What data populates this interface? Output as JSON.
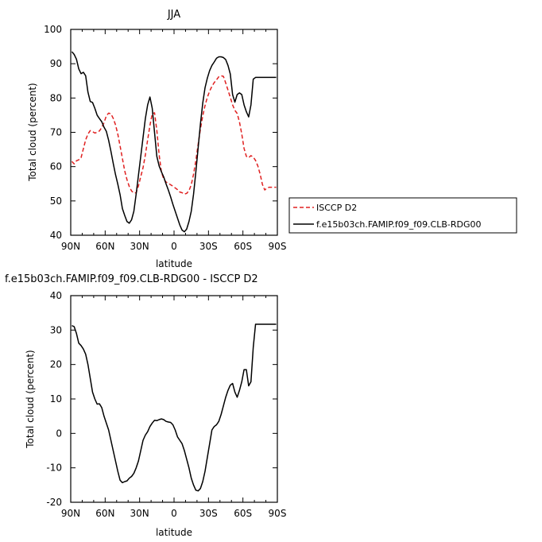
{
  "chart_data": [
    {
      "type": "line",
      "title": "JJA",
      "xlabel": "latitude",
      "ylabel": "Total cloud (percent)",
      "xlim": [
        90,
        -90
      ],
      "ylim": [
        40,
        100
      ],
      "xticks": [
        {
          "v": 90,
          "label": "90N"
        },
        {
          "v": 60,
          "label": "60N"
        },
        {
          "v": 30,
          "label": "30N"
        },
        {
          "v": 0,
          "label": "0"
        },
        {
          "v": -30,
          "label": "30S"
        },
        {
          "v": -60,
          "label": "60S"
        },
        {
          "v": -90,
          "label": "90S"
        }
      ],
      "yticks": [
        40,
        50,
        60,
        70,
        80,
        90,
        100
      ],
      "legend_position": "right",
      "series": [
        {
          "name": "ISCCP D2",
          "color": "#e02020",
          "dash": "dashed",
          "x": [
            89,
            87,
            85,
            83,
            81,
            79,
            77,
            75,
            73,
            71,
            69,
            67,
            65,
            63,
            61,
            59,
            57,
            55,
            53,
            51,
            49,
            47,
            45,
            43,
            41,
            39,
            37,
            35,
            33,
            31,
            29,
            27,
            25,
            23,
            21,
            19,
            17,
            15,
            13,
            11,
            9,
            7,
            5,
            3,
            1,
            -1,
            -3,
            -5,
            -7,
            -9,
            -11,
            -13,
            -15,
            -17,
            -19,
            -21,
            -23,
            -25,
            -27,
            -29,
            -31,
            -33,
            -35,
            -37,
            -39,
            -41,
            -43,
            -45,
            -47,
            -49,
            -51,
            -53,
            -55,
            -57,
            -59,
            -61,
            -63,
            -65,
            -67,
            -69,
            -71,
            -73,
            -75,
            -77,
            -79,
            -81,
            -83,
            -85,
            -87,
            -89
          ],
          "values": [
            61.5,
            60.8,
            61.7,
            62.0,
            62.6,
            65.2,
            67.8,
            69.5,
            70.5,
            70.2,
            69.8,
            70.0,
            70.4,
            71.4,
            72.8,
            74.8,
            75.6,
            75.4,
            74.1,
            72.2,
            69.5,
            66.0,
            62.4,
            58.8,
            56.2,
            54.2,
            52.9,
            52.3,
            52.4,
            54.4,
            57.1,
            59.7,
            63.4,
            67.8,
            72.0,
            75.4,
            75.7,
            70.6,
            63.5,
            58.4,
            56.4,
            55.5,
            55.2,
            54.7,
            54.3,
            53.8,
            53.3,
            52.6,
            52.4,
            52.0,
            52.2,
            53.0,
            54.7,
            57.8,
            61.8,
            66.5,
            71.0,
            74.8,
            77.8,
            80.2,
            82.0,
            83.4,
            84.5,
            85.3,
            86.2,
            86.5,
            86.3,
            84.4,
            82.3,
            80.2,
            78.0,
            76.4,
            75.5,
            73.0,
            69.5,
            65.3,
            63.0,
            62.6,
            63.2,
            62.8,
            61.8,
            60.2,
            57.8,
            54.8,
            53.2,
            53.8,
            54.0,
            54.0,
            54.0,
            54.0
          ]
        },
        {
          "name": "f.e15b03ch.FAMIP.f09_f09.CLB-RDG00",
          "color": "#000000",
          "dash": "solid",
          "x": [
            89,
            87,
            85,
            83,
            81,
            79,
            77,
            75,
            73,
            71,
            69,
            67,
            65,
            63,
            61,
            59,
            57,
            55,
            53,
            51,
            49,
            47,
            45,
            43,
            41,
            39,
            37,
            35,
            33,
            31,
            29,
            27,
            25,
            23,
            21,
            19,
            17,
            15,
            13,
            11,
            9,
            7,
            5,
            3,
            1,
            -1,
            -3,
            -5,
            -7,
            -9,
            -11,
            -13,
            -15,
            -17,
            -19,
            -21,
            -23,
            -25,
            -27,
            -29,
            -31,
            -33,
            -35,
            -37,
            -39,
            -41,
            -43,
            -45,
            -47,
            -49,
            -51,
            -53,
            -55,
            -57,
            -59,
            -61,
            -63,
            -65,
            -67,
            -69,
            -71,
            -73,
            -75,
            -77,
            -79,
            -81,
            -83,
            -85,
            -87,
            -89
          ],
          "values": [
            93.5,
            92.7,
            91.3,
            88.5,
            87.1,
            87.5,
            86.5,
            81.7,
            79.0,
            78.7,
            77.0,
            75.0,
            74.0,
            73.1,
            71.5,
            70.3,
            67.7,
            64.5,
            61.0,
            57.7,
            54.9,
            51.8,
            47.8,
            45.8,
            44.0,
            43.5,
            44.5,
            47.0,
            52.0,
            57.5,
            63.0,
            68.5,
            74.0,
            78.0,
            80.3,
            77.0,
            70.0,
            63.0,
            60.2,
            58.5,
            57.0,
            55.0,
            53.2,
            51.2,
            49.0,
            47.0,
            45.0,
            43.0,
            41.5,
            41.0,
            41.8,
            44.0,
            47.0,
            52.0,
            58.5,
            65.5,
            72.5,
            78.5,
            83.0,
            85.8,
            88.0,
            89.5,
            90.5,
            91.6,
            92.0,
            92.0,
            91.8,
            91.2,
            89.5,
            87.0,
            81.0,
            78.8,
            81.0,
            81.5,
            81.0,
            78.0,
            76.0,
            74.5,
            78.0,
            85.5,
            86.0,
            86.0,
            86.0,
            86.0,
            86.0,
            86.0,
            86.0,
            86.0,
            86.0,
            86.0
          ]
        }
      ]
    },
    {
      "type": "line",
      "title": "f.e15b03ch.FAMIP.f09_f09.CLB-RDG00 - ISCCP D2",
      "xlabel": "latitude",
      "ylabel": "Total cloud (percent)",
      "xlim": [
        90,
        -90
      ],
      "ylim": [
        -20,
        40
      ],
      "xticks": [
        {
          "v": 90,
          "label": "90N"
        },
        {
          "v": 60,
          "label": "60N"
        },
        {
          "v": 30,
          "label": "30N"
        },
        {
          "v": 0,
          "label": "0"
        },
        {
          "v": -30,
          "label": "30S"
        },
        {
          "v": -60,
          "label": "60S"
        },
        {
          "v": -90,
          "label": "90S"
        }
      ],
      "yticks": [
        -20,
        -10,
        0,
        10,
        20,
        30,
        40
      ],
      "series": [
        {
          "color": "#000000",
          "dash": "solid",
          "x": [
            89,
            87,
            85,
            83,
            81,
            79,
            77,
            75,
            73,
            71,
            69,
            67,
            65,
            63,
            61,
            59,
            57,
            55,
            53,
            51,
            49,
            47,
            45,
            43,
            41,
            39,
            37,
            35,
            33,
            31,
            29,
            27,
            25,
            23,
            21,
            19,
            17,
            15,
            13,
            11,
            9,
            7,
            5,
            3,
            1,
            -1,
            -3,
            -5,
            -7,
            -9,
            -11,
            -13,
            -15,
            -17,
            -19,
            -21,
            -23,
            -25,
            -27,
            -29,
            -31,
            -33,
            -35,
            -37,
            -39,
            -41,
            -43,
            -45,
            -47,
            -49,
            -51,
            -53,
            -55,
            -57,
            -59,
            -61,
            -63,
            -65,
            -67,
            -69,
            -71,
            -73,
            -75,
            -77,
            -79,
            -81,
            -83,
            -85,
            -87,
            -89
          ],
          "values": [
            31.3,
            31.0,
            29.0,
            26.2,
            25.5,
            24.5,
            23.0,
            20.0,
            16.0,
            12.0,
            10.0,
            8.5,
            8.6,
            7.5,
            5.0,
            3.0,
            1.0,
            -2.0,
            -5.0,
            -8.0,
            -11.0,
            -13.6,
            -14.3,
            -14.0,
            -13.8,
            -13.0,
            -12.5,
            -11.6,
            -10.0,
            -8.0,
            -5.0,
            -2.0,
            -0.5,
            0.5,
            2.0,
            3.0,
            3.8,
            3.7,
            4.0,
            4.2,
            4.0,
            3.5,
            3.3,
            3.2,
            2.5,
            1.0,
            -1.0,
            -2.0,
            -3.0,
            -5.0,
            -7.5,
            -10.0,
            -13.0,
            -15.0,
            -16.5,
            -16.7,
            -16.0,
            -14.0,
            -11.0,
            -7.0,
            -3.0,
            1.0,
            2.0,
            2.5,
            3.5,
            5.5,
            8.0,
            10.5,
            12.5,
            14.0,
            14.5,
            12.0,
            10.5,
            12.5,
            15.0,
            18.5,
            18.5,
            13.8,
            15.0,
            25.0,
            31.7,
            31.7,
            31.7,
            31.7,
            31.7,
            31.7,
            31.7,
            31.7,
            31.7,
            31.7
          ]
        }
      ]
    }
  ]
}
